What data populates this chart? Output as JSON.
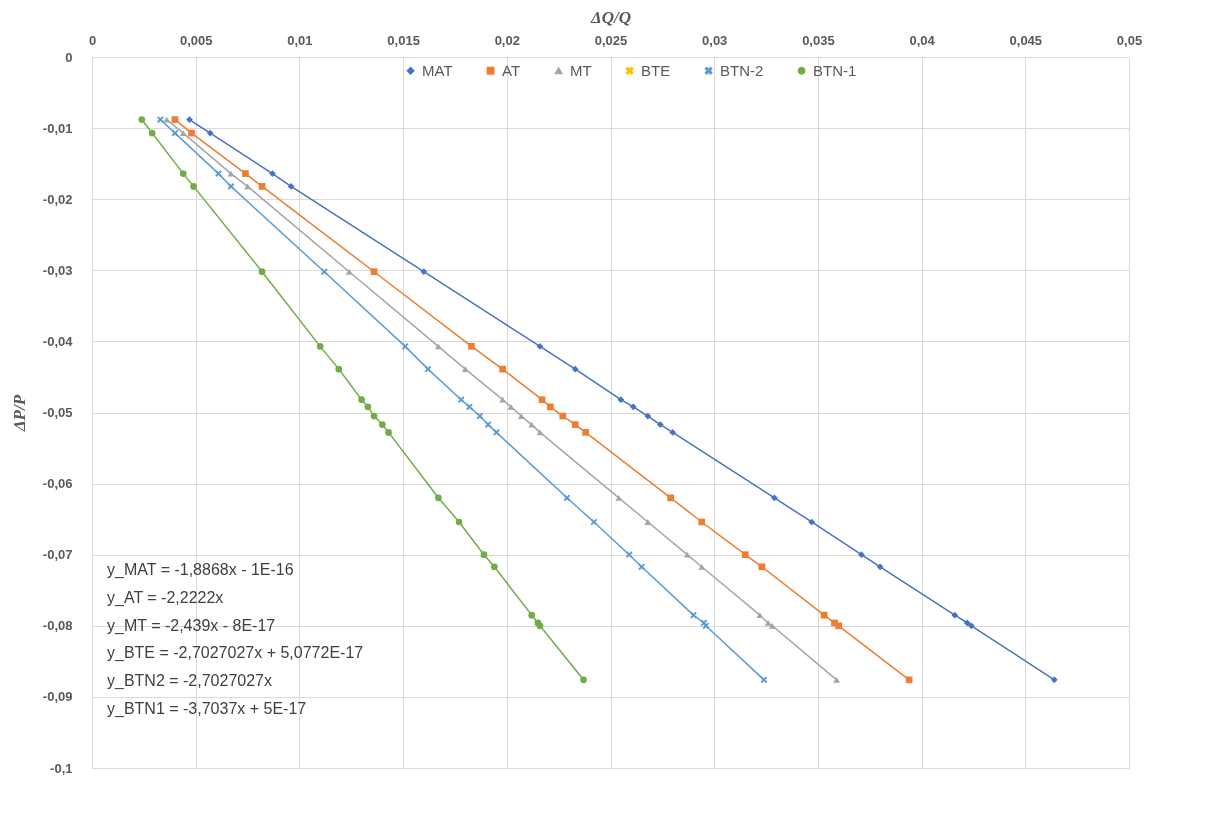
{
  "chart_data": {
    "type": "line",
    "xlabel": "ΔQ/Q",
    "ylabel": "ΔP/P",
    "xlim": [
      0,
      0.05
    ],
    "xticks": [
      0,
      {
        "value": 0.005,
        "label": "0,005"
      },
      {
        "value": 0.01,
        "label": "0,01"
      },
      {
        "value": 0.015,
        "label": "0,015"
      },
      {
        "value": 0.02,
        "label": "0,02"
      },
      {
        "value": 0.025,
        "label": "0,025"
      },
      {
        "value": 0.03,
        "label": "0,03"
      },
      {
        "value": 0.035,
        "label": "0,035"
      },
      {
        "value": 0.04,
        "label": "0,04"
      },
      {
        "value": 0.045,
        "label": "0,045"
      },
      {
        "value": 0.05,
        "label": "0,05"
      }
    ],
    "ylim": [
      -0.1,
      0
    ],
    "yticks": [
      {
        "value": -0.1,
        "label": "-0,1"
      },
      {
        "value": -0.09,
        "label": "-0,09"
      },
      {
        "value": -0.08,
        "label": "-0,08"
      },
      {
        "value": -0.07,
        "label": "-0,07"
      },
      {
        "value": -0.06,
        "label": "-0,06"
      },
      {
        "value": -0.05,
        "label": "-0,05"
      },
      {
        "value": -0.04,
        "label": "-0,04"
      },
      {
        "value": -0.03,
        "label": "-0,03"
      },
      {
        "value": -0.02,
        "label": "-0,02"
      },
      {
        "value": -0.01,
        "label": "-0,01"
      },
      0
    ],
    "grid": true,
    "legend": "top",
    "line_style": "solid",
    "series": [
      {
        "name": "MAT",
        "color": "#4472c4",
        "marker": "diamond",
        "x": [
          0.0047,
          0.0057,
          0.0087,
          0.0096,
          0.016,
          0.0216,
          0.0233,
          0.0255,
          0.0261,
          0.0268,
          0.0274,
          0.028,
          0.0329,
          0.0347,
          0.0371,
          0.038,
          0.0416,
          0.0422,
          0.0424,
          0.0464
        ],
        "values": [
          -0.0088,
          -0.0107,
          -0.0164,
          -0.0182,
          -0.0302,
          -0.0407,
          -0.0439,
          -0.0482,
          -0.0492,
          -0.0505,
          -0.0517,
          -0.0528,
          -0.062,
          -0.0654,
          -0.07,
          -0.0717,
          -0.0785,
          -0.0796,
          -0.08,
          -0.0876
        ]
      },
      {
        "name": "AT",
        "color": "#ed7d31",
        "marker": "square",
        "x": [
          0.004,
          0.0048,
          0.0074,
          0.0082,
          0.0136,
          0.0183,
          0.0198,
          0.0217,
          0.0221,
          0.0227,
          0.0233,
          0.0238,
          0.0279,
          0.0294,
          0.0315,
          0.0323,
          0.0353,
          0.0358,
          0.036,
          0.0394
        ],
        "values": [
          -0.0088,
          -0.0107,
          -0.0164,
          -0.0182,
          -0.0302,
          -0.0407,
          -0.0439,
          -0.0482,
          -0.0492,
          -0.0505,
          -0.0517,
          -0.0528,
          -0.062,
          -0.0654,
          -0.07,
          -0.0717,
          -0.0785,
          -0.0796,
          -0.08,
          -0.0876
        ]
      },
      {
        "name": "MT",
        "color": "#a5a5a5",
        "marker": "triangle",
        "x": [
          0.0036,
          0.0044,
          0.0067,
          0.0075,
          0.0124,
          0.0167,
          0.018,
          0.0198,
          0.0202,
          0.0207,
          0.0212,
          0.0216,
          0.0254,
          0.0268,
          0.0287,
          0.0294,
          0.0322,
          0.0326,
          0.0328,
          0.0359
        ],
        "values": [
          -0.0088,
          -0.0107,
          -0.0164,
          -0.0182,
          -0.0302,
          -0.0407,
          -0.0439,
          -0.0482,
          -0.0492,
          -0.0505,
          -0.0517,
          -0.0528,
          -0.062,
          -0.0654,
          -0.07,
          -0.0717,
          -0.0785,
          -0.0796,
          -0.08,
          -0.0876
        ]
      },
      {
        "name": "BTE",
        "color": "#ffc000",
        "marker": "cross",
        "values": [
          null,
          null,
          null,
          null,
          null,
          null,
          null,
          null,
          null,
          null,
          null,
          null,
          null,
          null,
          null,
          null,
          null,
          null,
          null,
          null
        ]
      },
      {
        "name": "BTN-2",
        "color": "#5b9bd5",
        "marker": "cross",
        "x": [
          0.0033,
          0.004,
          0.0061,
          0.0067,
          0.0112,
          0.0151,
          0.0162,
          0.0178,
          0.0182,
          0.0187,
          0.0191,
          0.0195,
          0.0229,
          0.0242,
          0.0259,
          0.0265,
          0.029,
          0.0295,
          0.0296,
          0.0324
        ],
        "values": [
          -0.0088,
          -0.0107,
          -0.0164,
          -0.0182,
          -0.0302,
          -0.0407,
          -0.0439,
          -0.0482,
          -0.0492,
          -0.0505,
          -0.0517,
          -0.0528,
          -0.062,
          -0.0654,
          -0.07,
          -0.0717,
          -0.0785,
          -0.0796,
          -0.08,
          -0.0876
        ]
      },
      {
        "name": "BTN-1",
        "color": "#70ad47",
        "marker": "circle",
        "x": [
          0.0024,
          0.0029,
          0.0044,
          0.0049,
          0.0082,
          0.011,
          0.0119,
          0.013,
          0.0133,
          0.0136,
          0.014,
          0.0143,
          0.0167,
          0.0177,
          0.0189,
          0.0194,
          0.0212,
          0.0215,
          0.0216,
          0.0237
        ],
        "values": [
          -0.0088,
          -0.0107,
          -0.0164,
          -0.0182,
          -0.0302,
          -0.0407,
          -0.0439,
          -0.0482,
          -0.0492,
          -0.0505,
          -0.0517,
          -0.0528,
          -0.062,
          -0.0654,
          -0.07,
          -0.0717,
          -0.0785,
          -0.0796,
          -0.08,
          -0.0876
        ]
      }
    ],
    "annotations": [
      "y_MAT  = -1,8868x - 1E-16",
      "y_AT     = -2,2222x",
      "y_MT     = -2,439x - 8E-17",
      "y_BTE   = -2,7027027x + 5,0772E-17",
      "y_BTN2 = -2,7027027x",
      "y_BTN1 = -3,7037x + 5E-17"
    ]
  }
}
